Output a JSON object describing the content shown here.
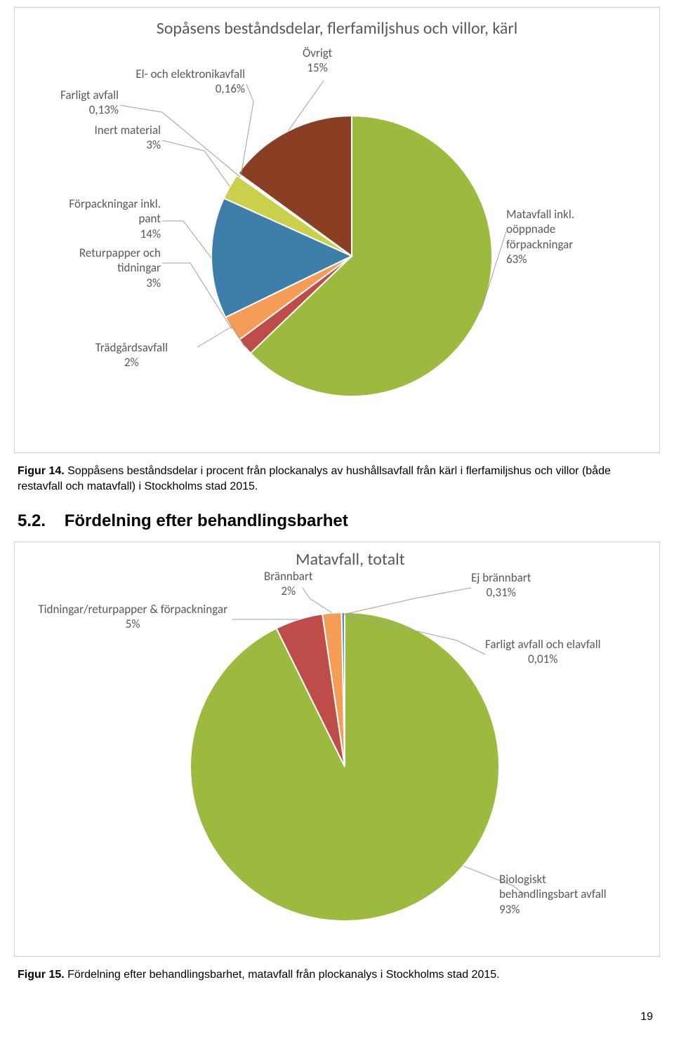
{
  "chart1": {
    "type": "pie",
    "title": "Sopåsens beståndsdelar, flerfamiljshus och villor, kärl",
    "background_color": "#ffffff",
    "border_color": "#d0d0d0",
    "title_color": "#595959",
    "title_fontsize": 24,
    "label_color": "#595959",
    "label_fontsize": 17,
    "slice_border_color": "#ffffff",
    "slice_border_width": 2,
    "slices": [
      {
        "key": "matavfall",
        "label_l1": "Matavfall inkl.",
        "label_l2": "oöppnade",
        "label_l3": "förpackningar",
        "label_l4": "63%",
        "value": 63,
        "color": "#9cba3e"
      },
      {
        "key": "tradgard",
        "label_l1": "Trädgårdsavfall",
        "label_l2": "2%",
        "value": 2,
        "color": "#be4c48"
      },
      {
        "key": "returpapper",
        "label_l1": "Returpapper och",
        "label_l2": "tidningar",
        "label_l3": "3%",
        "value": 3,
        "color": "#f59d56"
      },
      {
        "key": "forpack",
        "label_l1": "Förpackningar inkl.",
        "label_l2": "pant",
        "label_l3": "14%",
        "value": 14,
        "color": "#3d7fa8"
      },
      {
        "key": "inert",
        "label_l1": "Inert material",
        "label_l2": "3%",
        "value": 3,
        "color": "#cad04b"
      },
      {
        "key": "farligt",
        "label_l1": "Farligt avfall",
        "label_l2": "0,13%",
        "value": 0.13,
        "color": "#7e649e"
      },
      {
        "key": "elektronik",
        "label_l1": "El- och elektronikavfall",
        "label_l2": "0,16%",
        "value": 0.16,
        "color": "#5fa5ce"
      },
      {
        "key": "ovrigt",
        "label_l1": "Övrigt",
        "label_l2": "15%",
        "value": 15,
        "color": "#8a3f24"
      }
    ]
  },
  "figcap1_bold": "Figur 14.",
  "figcap1_text": " Soppåsens beståndsdelar i procent från plockanalys av hushållsavfall från kärl i flerfamiljshus och villor (både restavfall och matavfall) i Stockholms stad 2015.",
  "section_num": "5.2.",
  "section_title": "Fördelning efter behandlingsbarhet",
  "chart2": {
    "type": "pie",
    "title": "Matavfall, totalt",
    "background_color": "#ffffff",
    "border_color": "#d0d0d0",
    "title_color": "#595959",
    "title_fontsize": 24,
    "label_color": "#595959",
    "label_fontsize": 17,
    "slice_border_color": "#ffffff",
    "slice_border_width": 2,
    "slices": [
      {
        "key": "biologiskt",
        "label_l1": "Biologiskt",
        "label_l2": "behandlingsbart avfall",
        "label_l3": "93%",
        "value": 93,
        "color": "#9cba3e"
      },
      {
        "key": "tidningar",
        "label_l1": "Tidningar/returpapper & förpackningar",
        "label_l2": "5%",
        "value": 5,
        "color": "#be4c48"
      },
      {
        "key": "brannbart",
        "label_l1": "Brännbart",
        "label_l2": "2%",
        "value": 2,
        "color": "#f59d56"
      },
      {
        "key": "ejbrannbart",
        "label_l1": "Ej brännbart",
        "label_l2": "0,31%",
        "value": 0.31,
        "color": "#3d7fa8"
      },
      {
        "key": "farligtel",
        "label_l1": "Farligt avfall och elavfall",
        "label_l2": "0,01%",
        "value": 0.01,
        "color": "#cad04b"
      }
    ]
  },
  "figcap2_bold": "Figur 15.",
  "figcap2_text": " Fördelning efter behandlingsbarhet, matavfall från plockanalys i Stockholms stad 2015.",
  "page_number": "19"
}
